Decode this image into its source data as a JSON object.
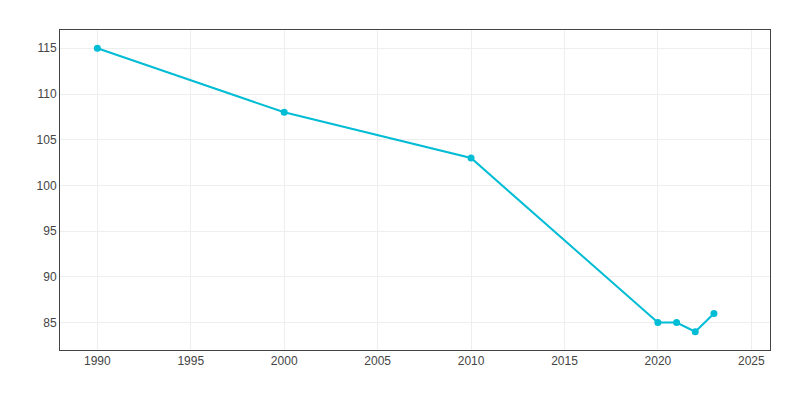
{
  "chart_data": {
    "type": "line",
    "x": [
      1990,
      2000,
      2010,
      2020,
      2021,
      2022,
      2023
    ],
    "values": [
      115,
      108,
      103,
      85,
      85,
      84,
      86
    ],
    "color": "#00bcd4",
    "marker": "circle",
    "xlim": [
      1988,
      2026
    ],
    "ylim": [
      82,
      117
    ],
    "xticks": [
      1990,
      1995,
      2000,
      2005,
      2010,
      2015,
      2020,
      2025
    ],
    "yticks": [
      85,
      90,
      95,
      100,
      105,
      110,
      115
    ],
    "grid": true
  }
}
